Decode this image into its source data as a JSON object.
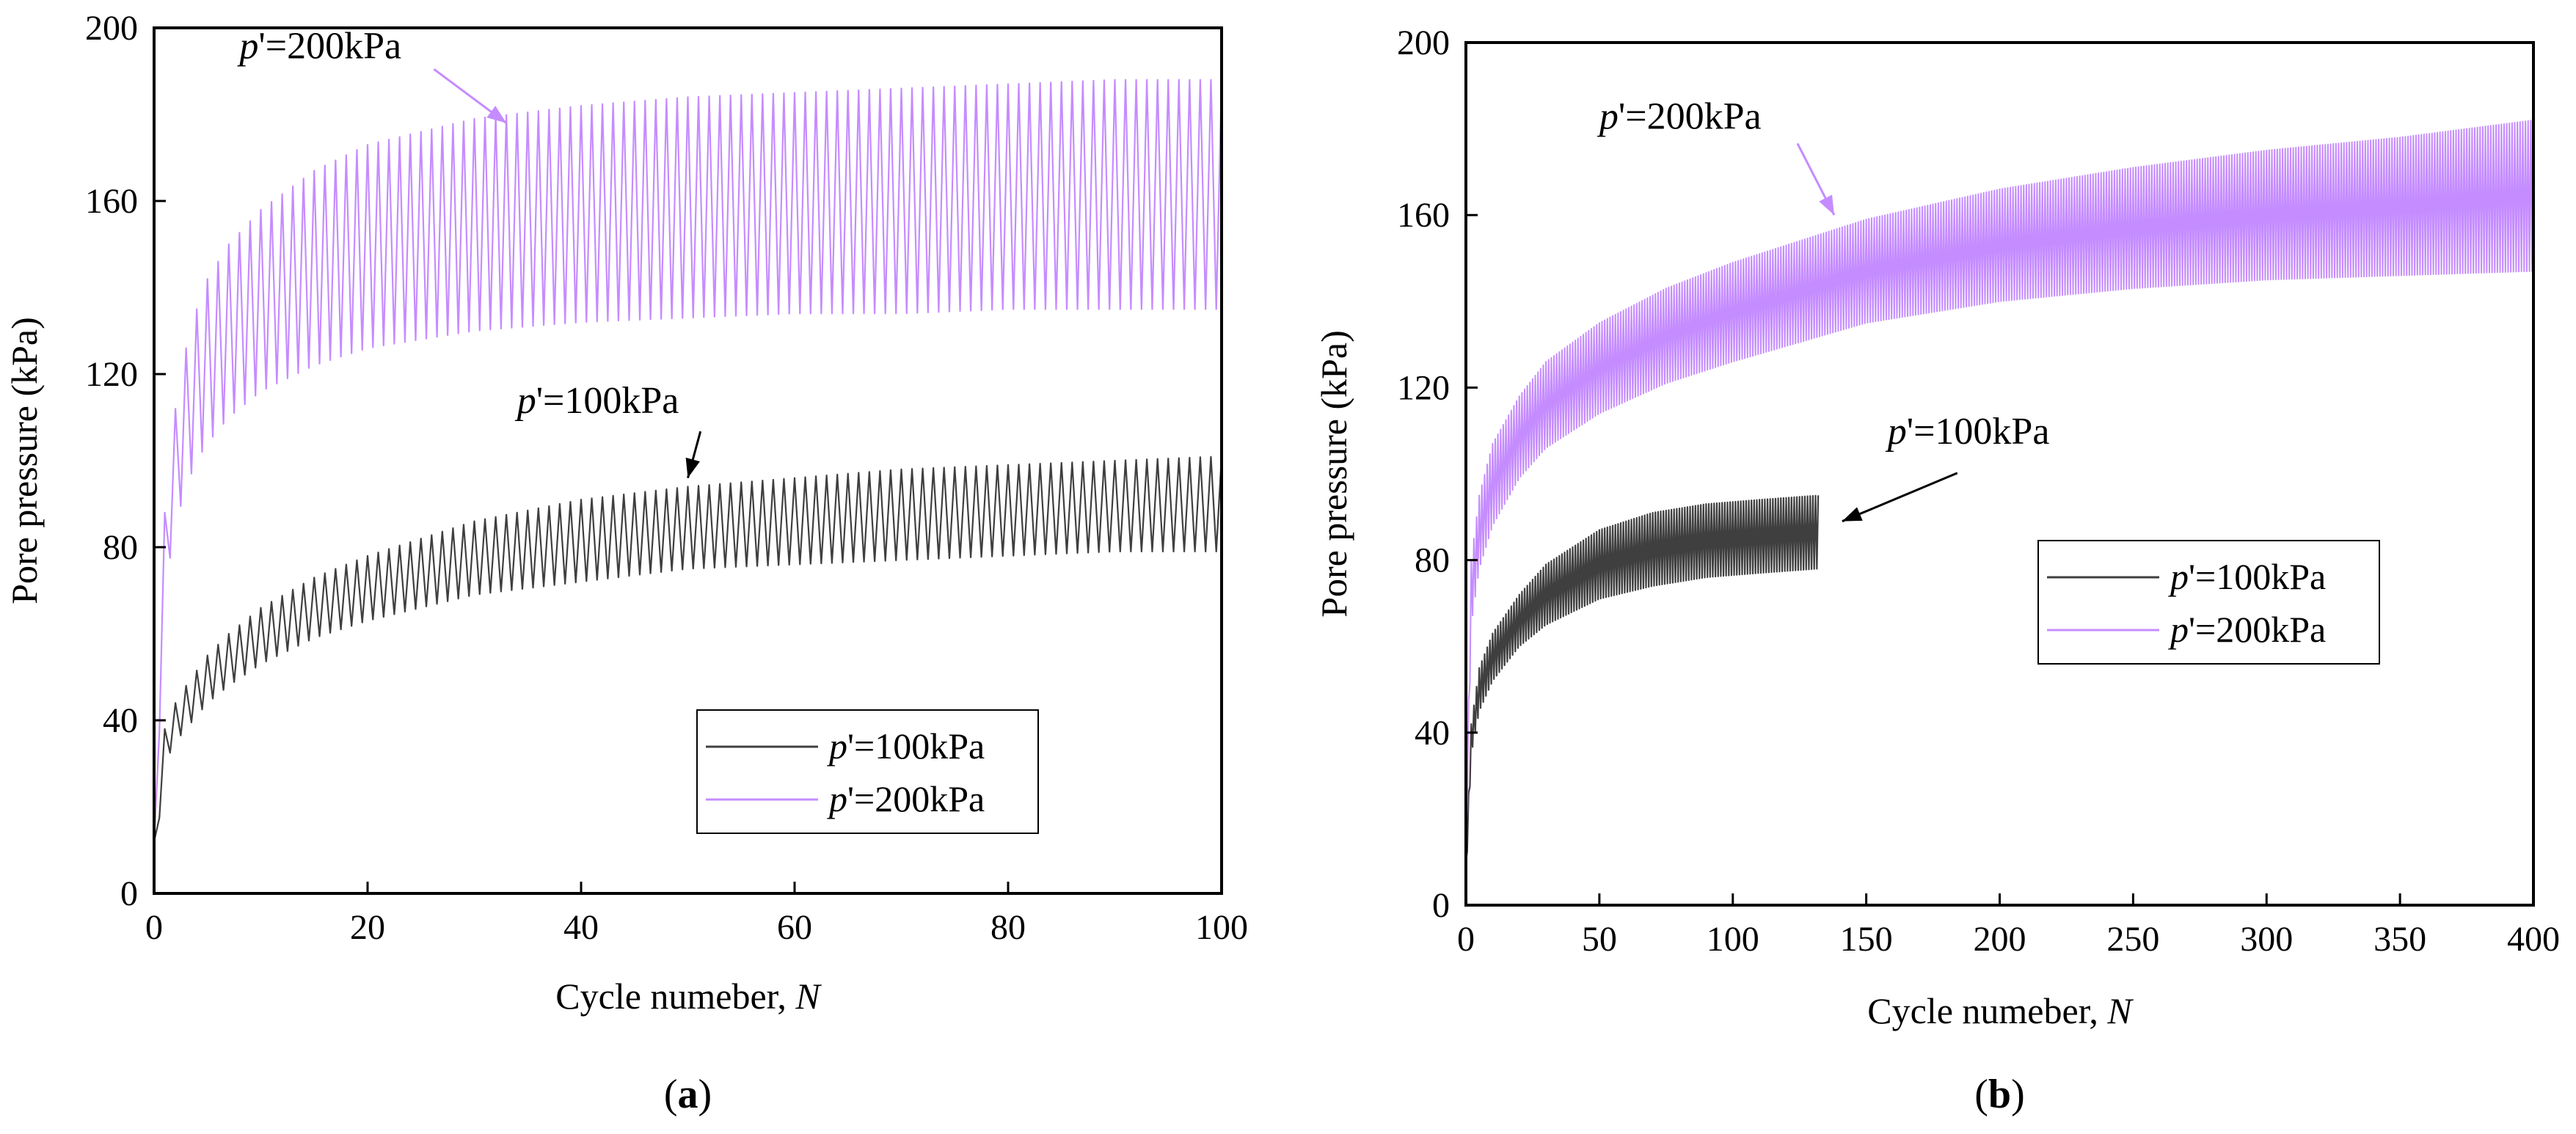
{
  "colors": {
    "p100": "#3f3f3f",
    "p200": "#c58cff",
    "axis": "#000000"
  },
  "chart_data": [
    {
      "id": "a",
      "panel_label": "a",
      "type": "line",
      "xlabel": "Cycle numeber, ",
      "xlabel_italic": "N",
      "ylabel": "Pore pressure (kPa)",
      "xlim": [
        0,
        100
      ],
      "ylim": [
        0,
        200
      ],
      "xticks": [
        0,
        20,
        40,
        60,
        80,
        100
      ],
      "yticks": [
        0,
        40,
        80,
        120,
        160,
        200
      ],
      "grid": false,
      "legend_position": "bottom-right",
      "legend": [
        {
          "series": "p100",
          "italic": "p",
          "label": "'=100kPa"
        },
        {
          "series": "p200",
          "italic": "p",
          "label": "'=200kPa"
        }
      ],
      "annotations": [
        {
          "series": "p200",
          "italic": "p",
          "text": "'=200kPa",
          "x": 8,
          "y": 193,
          "arrow_to": [
            33,
            178
          ]
        },
        {
          "series": "p100",
          "italic": "p",
          "text": "'=100kPa",
          "x": 34,
          "y": 111,
          "arrow_to": [
            50,
            96
          ]
        }
      ],
      "series": [
        {
          "key": "p100",
          "color": "#3f3f3f",
          "n_cycles": 100,
          "peak": {
            "x": [
              0,
              1,
              2,
              3,
              5,
              7,
              10,
              15,
              20,
              25,
              30,
              40,
              50,
              60,
              70,
              80,
              90,
              100
            ],
            "y": [
              12,
              38,
              44,
              48,
              55,
              60,
              66,
              73,
              78,
              82,
              86,
              91,
              94,
              96,
              98,
              99,
              100,
              101
            ]
          },
          "trough": {
            "x": [
              0,
              1,
              2,
              3,
              5,
              7,
              10,
              15,
              20,
              25,
              30,
              40,
              50,
              60,
              70,
              80,
              90,
              100
            ],
            "y": [
              5,
              30,
              35,
              38,
              44,
              48,
              53,
              59,
              63,
              66,
              69,
              72,
              75,
              76,
              77,
              78,
              79,
              79
            ]
          }
        },
        {
          "key": "p200",
          "color": "#c58cff",
          "n_cycles": 100,
          "peak": {
            "x": [
              0,
              1,
              2,
              3,
              4,
              5,
              7,
              10,
              15,
              20,
              25,
              30,
              40,
              50,
              60,
              70,
              80,
              90,
              100
            ],
            "y": [
              12,
              88,
              112,
              126,
              135,
              142,
              150,
              158,
              167,
              173,
              176,
              179,
              182,
              184,
              185,
              186,
              187,
              188,
              188
            ]
          },
          "trough": {
            "x": [
              0,
              1,
              2,
              3,
              4,
              5,
              7,
              10,
              15,
              20,
              25,
              30,
              40,
              50,
              60,
              70,
              80,
              90,
              100
            ],
            "y": [
              5,
              70,
              85,
              94,
              100,
              104,
              110,
              116,
              122,
              126,
              128,
              130,
              132,
              133,
              134,
              134,
              135,
              135,
              135
            ]
          }
        }
      ]
    },
    {
      "id": "b",
      "panel_label": "b",
      "type": "line",
      "xlabel": "Cycle numeber, ",
      "xlabel_italic": "N",
      "ylabel": "Pore pressure (kPa)",
      "xlim": [
        0,
        400
      ],
      "ylim": [
        0,
        200
      ],
      "xticks": [
        0,
        50,
        100,
        150,
        200,
        250,
        300,
        350,
        400
      ],
      "yticks": [
        0,
        40,
        80,
        120,
        160,
        200
      ],
      "grid": false,
      "legend_position": "right",
      "legend": [
        {
          "series": "p100",
          "italic": "p",
          "label": "'=100kPa"
        },
        {
          "series": "p200",
          "italic": "p",
          "label": "'=200kPa"
        }
      ],
      "annotations": [
        {
          "series": "p200",
          "italic": "p",
          "text": "'=200kPa",
          "x": 50,
          "y": 180,
          "arrow_to": [
            138,
            160
          ]
        },
        {
          "series": "p100",
          "italic": "p",
          "text": "'=100kPa",
          "x": 158,
          "y": 107,
          "arrow_to": [
            141,
            89
          ]
        }
      ],
      "series": [
        {
          "key": "p100",
          "color": "#3f3f3f",
          "n_cycles": 132,
          "peak": {
            "x": [
              0,
              2,
              5,
              10,
              20,
              30,
              50,
              70,
              90,
              110,
              132
            ],
            "y": [
              10,
              42,
              55,
              63,
              72,
              79,
              87,
              91,
              93,
              94,
              95
            ]
          },
          "trough": {
            "x": [
              0,
              2,
              5,
              10,
              20,
              30,
              50,
              70,
              90,
              110,
              132
            ],
            "y": [
              5,
              35,
              45,
              52,
              60,
              65,
              71,
              74,
              76,
              77,
              78
            ]
          }
        },
        {
          "key": "p200",
          "color": "#c58cff",
          "n_cycles": 400,
          "peak": {
            "x": [
              0,
              2,
              5,
              10,
              20,
              30,
              50,
              75,
              100,
              150,
              200,
              250,
              300,
              350,
              400
            ],
            "y": [
              15,
              80,
              95,
              107,
              118,
              126,
              135,
              143,
              149,
              159,
              166,
              171,
              175,
              178,
              182
            ]
          },
          "trough": {
            "x": [
              0,
              2,
              5,
              10,
              20,
              30,
              50,
              75,
              100,
              150,
              200,
              250,
              300,
              350,
              400
            ],
            "y": [
              10,
              65,
              78,
              88,
              99,
              106,
              114,
              121,
              126,
              135,
              140,
              143,
              145,
              146,
              147
            ]
          }
        }
      ]
    }
  ]
}
